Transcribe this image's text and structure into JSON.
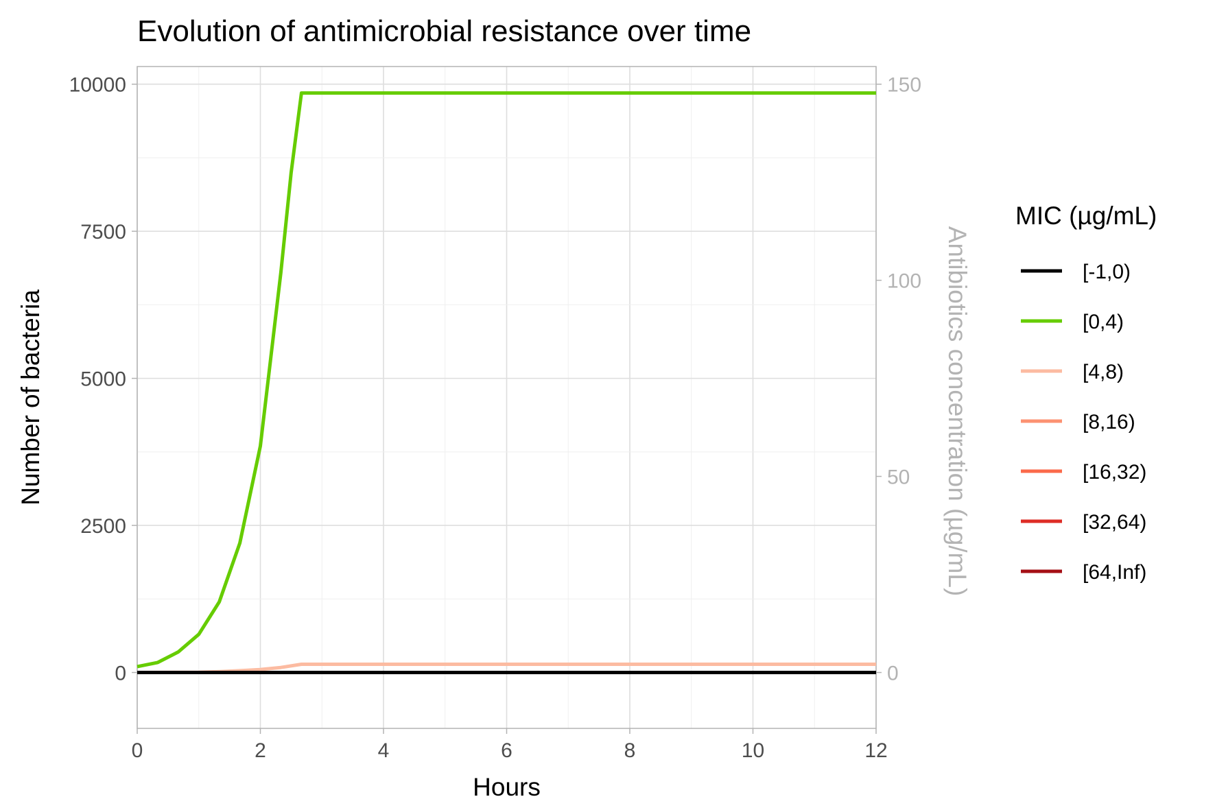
{
  "chart_data": {
    "type": "line",
    "title": "Evolution of antimicrobial resistance over time",
    "xlabel": "Hours",
    "ylabel": "Number of bacteria",
    "y2label": "Antibiotics concentration (µg/mL)",
    "xlim": [
      0,
      12
    ],
    "ylim": [
      -950,
      10300
    ],
    "y2lim": [
      0,
      150
    ],
    "xticks": [
      0,
      2,
      4,
      6,
      8,
      10,
      12
    ],
    "yticks": [
      0,
      2500,
      5000,
      7500,
      10000
    ],
    "y2ticks": [
      0,
      50,
      100,
      150
    ],
    "grid": true,
    "legend": {
      "title": "MIC (µg/mL)",
      "position": "right"
    },
    "series": [
      {
        "name": "[-1,0)",
        "color": "#000000",
        "x": [
          0,
          12
        ],
        "y": [
          0,
          0
        ]
      },
      {
        "name": "[0,4)",
        "color": "#66cc00",
        "x": [
          0,
          0.333,
          0.667,
          1.0,
          1.333,
          1.667,
          2.0,
          2.333,
          2.5,
          2.667,
          12
        ],
        "y": [
          100,
          170,
          350,
          650,
          1200,
          2200,
          3850,
          6800,
          8500,
          9850,
          9850
        ]
      },
      {
        "name": "[4,8)",
        "color": "#fcbba1",
        "x": [
          0,
          1.0,
          1.333,
          1.667,
          2.0,
          2.333,
          2.667,
          12
        ],
        "y": [
          0,
          5,
          15,
          30,
          50,
          85,
          140,
          140
        ]
      },
      {
        "name": "[8,16)",
        "color": "#fc9272",
        "x": [
          0,
          12
        ],
        "y": [
          0,
          0
        ]
      },
      {
        "name": "[16,32)",
        "color": "#fb6a4a",
        "x": [
          0,
          12
        ],
        "y": [
          0,
          0
        ]
      },
      {
        "name": "[32,64)",
        "color": "#de2d26",
        "x": [
          0,
          12
        ],
        "y": [
          0,
          0
        ]
      },
      {
        "name": "[64,Inf)",
        "color": "#a50f15",
        "x": [
          0,
          12
        ],
        "y": [
          0,
          0
        ]
      }
    ]
  }
}
